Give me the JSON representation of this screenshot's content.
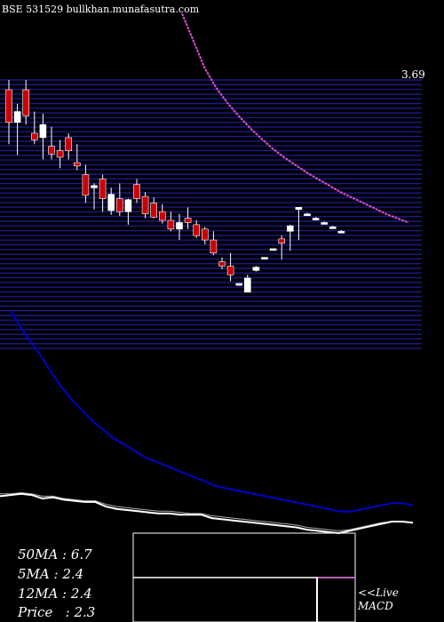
{
  "header": "BSE 531529 bullkhan.munafasutra.com",
  "stats": {
    "ma50": "50MA : 6.7",
    "ma5": "5MA : 2.4",
    "ma12": "12MA : 2.4",
    "price": "Price   : 2.3"
  },
  "macd_label_line1": "<<Live",
  "macd_label_line2": "MACD",
  "colors": {
    "background": "#000000",
    "grid": "#1a1a8c",
    "up_candle": "#ffffff",
    "down_candle": "#cc0000",
    "ma_curve": "#d94fd9",
    "ma_slow": "#0000c8",
    "ma_fast": "#ffffff",
    "macd_signal": "#cc55cc"
  },
  "chart_data": {
    "type": "candlestick",
    "price_axis_top_label": "3.69",
    "ylim": [
      1.2,
      3.69
    ],
    "candles": [
      {
        "o": 3.3,
        "h": 3.69,
        "l": 3.1,
        "c": 3.6,
        "dir": "down"
      },
      {
        "o": 3.3,
        "h": 3.47,
        "l": 3.0,
        "c": 3.4,
        "dir": "up"
      },
      {
        "o": 3.6,
        "h": 3.69,
        "l": 3.28,
        "c": 3.36,
        "dir": "down"
      },
      {
        "o": 3.2,
        "h": 3.4,
        "l": 3.1,
        "c": 3.14,
        "dir": "down"
      },
      {
        "o": 3.16,
        "h": 3.38,
        "l": 2.96,
        "c": 3.28,
        "dir": "up"
      },
      {
        "o": 3.08,
        "h": 3.26,
        "l": 2.96,
        "c": 3.01,
        "dir": "down"
      },
      {
        "o": 3.04,
        "h": 3.14,
        "l": 2.88,
        "c": 2.98,
        "dir": "down"
      },
      {
        "o": 3.16,
        "h": 3.2,
        "l": 2.96,
        "c": 3.04,
        "dir": "down"
      },
      {
        "o": 2.93,
        "h": 3.1,
        "l": 2.86,
        "c": 2.9,
        "dir": "down"
      },
      {
        "o": 2.82,
        "h": 2.91,
        "l": 2.56,
        "c": 2.63,
        "dir": "down"
      },
      {
        "o": 2.7,
        "h": 2.74,
        "l": 2.5,
        "c": 2.72,
        "dir": "up"
      },
      {
        "o": 2.78,
        "h": 2.82,
        "l": 2.48,
        "c": 2.6,
        "dir": "down"
      },
      {
        "o": 2.49,
        "h": 2.7,
        "l": 2.45,
        "c": 2.64,
        "dir": "up"
      },
      {
        "o": 2.6,
        "h": 2.74,
        "l": 2.44,
        "c": 2.48,
        "dir": "down"
      },
      {
        "o": 2.48,
        "h": 2.6,
        "l": 2.36,
        "c": 2.59,
        "dir": "up"
      },
      {
        "o": 2.73,
        "h": 2.78,
        "l": 2.56,
        "c": 2.6,
        "dir": "down"
      },
      {
        "o": 2.62,
        "h": 2.66,
        "l": 2.42,
        "c": 2.46,
        "dir": "down"
      },
      {
        "o": 2.56,
        "h": 2.61,
        "l": 2.42,
        "c": 2.43,
        "dir": "down"
      },
      {
        "o": 2.48,
        "h": 2.55,
        "l": 2.37,
        "c": 2.4,
        "dir": "down"
      },
      {
        "o": 2.4,
        "h": 2.48,
        "l": 2.3,
        "c": 2.32,
        "dir": "down"
      },
      {
        "o": 2.32,
        "h": 2.46,
        "l": 2.22,
        "c": 2.38,
        "dir": "up"
      },
      {
        "o": 2.42,
        "h": 2.52,
        "l": 2.32,
        "c": 2.38,
        "dir": "down"
      },
      {
        "o": 2.36,
        "h": 2.4,
        "l": 2.24,
        "c": 2.26,
        "dir": "down"
      },
      {
        "o": 2.32,
        "h": 2.34,
        "l": 2.18,
        "c": 2.22,
        "dir": "down"
      },
      {
        "o": 2.22,
        "h": 2.3,
        "l": 2.08,
        "c": 2.1,
        "dir": "down"
      },
      {
        "o": 2.02,
        "h": 2.06,
        "l": 1.95,
        "c": 1.98,
        "dir": "down"
      },
      {
        "o": 1.98,
        "h": 2.1,
        "l": 1.84,
        "c": 1.9,
        "dir": "down"
      },
      {
        "o": 1.82,
        "h": 1.82,
        "l": 1.8,
        "c": 1.81,
        "dir": "up"
      },
      {
        "o": 1.74,
        "h": 1.9,
        "l": 1.74,
        "c": 1.87,
        "dir": "up"
      },
      {
        "o": 1.94,
        "h": 1.98,
        "l": 1.93,
        "c": 1.97,
        "dir": "up"
      },
      {
        "o": 2.06,
        "h": 2.06,
        "l": 2.05,
        "c": 2.05,
        "dir": "up"
      },
      {
        "o": 2.14,
        "h": 2.14,
        "l": 2.13,
        "c": 2.13,
        "dir": "up"
      },
      {
        "o": 2.19,
        "h": 2.26,
        "l": 2.04,
        "c": 2.23,
        "dir": "down"
      },
      {
        "o": 2.3,
        "h": 2.36,
        "l": 2.12,
        "c": 2.35,
        "dir": "up"
      },
      {
        "o": 2.5,
        "h": 2.52,
        "l": 2.22,
        "c": 2.52,
        "dir": "up"
      },
      {
        "o": 2.46,
        "h": 2.47,
        "l": 2.46,
        "c": 2.46,
        "dir": "up"
      },
      {
        "o": 2.42,
        "h": 2.43,
        "l": 2.42,
        "c": 2.42,
        "dir": "up"
      },
      {
        "o": 2.38,
        "h": 2.39,
        "l": 2.38,
        "c": 2.38,
        "dir": "up"
      },
      {
        "o": 2.34,
        "h": 2.35,
        "l": 2.34,
        "c": 2.34,
        "dir": "up"
      },
      {
        "o": 2.3,
        "h": 2.31,
        "l": 2.3,
        "c": 2.3,
        "dir": "up"
      }
    ],
    "ma_curve": [
      4.3,
      4.05,
      3.8,
      3.62,
      3.48,
      3.36,
      3.25,
      3.15,
      3.06,
      2.98,
      2.91,
      2.84,
      2.78,
      2.72,
      2.66,
      2.61,
      2.56,
      2.51,
      2.46,
      2.42,
      2.38
    ],
    "ma_slow": [
      100,
      92,
      85,
      78,
      70,
      63,
      57,
      52,
      47,
      43,
      39,
      36,
      33,
      30,
      28,
      26,
      24,
      22,
      20,
      18,
      16,
      15,
      14,
      13,
      12,
      11,
      10,
      9,
      8,
      7,
      6,
      5,
      4,
      4,
      5,
      6,
      7,
      8,
      8,
      7
    ],
    "ma_fast": [
      32,
      33,
      34,
      33,
      30,
      31,
      29,
      28,
      27,
      27,
      23,
      21,
      20,
      19,
      18,
      17,
      17,
      16,
      16,
      16,
      13,
      12,
      11,
      10,
      9,
      8,
      7,
      6,
      5,
      3,
      2,
      1,
      0,
      2,
      4,
      6,
      8,
      10,
      10,
      9
    ],
    "ma_fast2": [
      34,
      34,
      35,
      34,
      32,
      32,
      30,
      29,
      28,
      28,
      25,
      23,
      22,
      21,
      20,
      19,
      19,
      18,
      17,
      17,
      15,
      14,
      13,
      12,
      11,
      10,
      9,
      8,
      7,
      5,
      4,
      3,
      2,
      3,
      5,
      7,
      9,
      10,
      10,
      9
    ],
    "macd_signal_level": 0.5
  }
}
